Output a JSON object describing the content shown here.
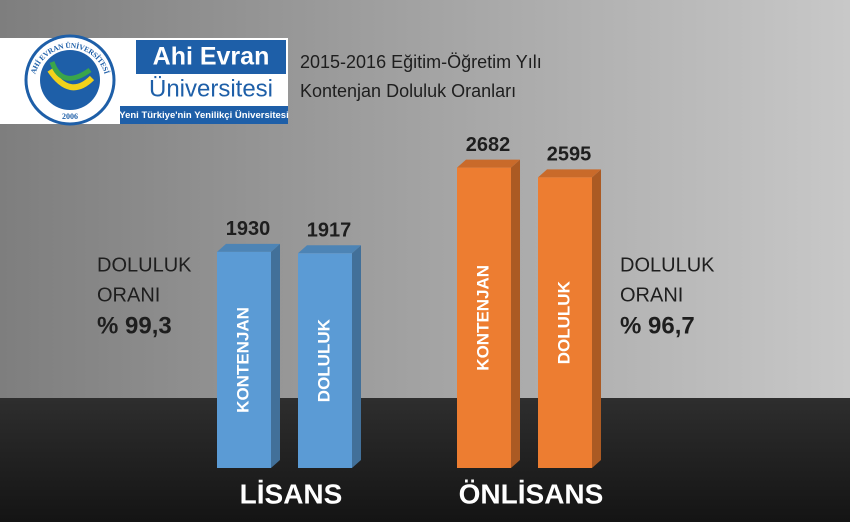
{
  "logo": {
    "name": "Ahi Evran",
    "name2": "Üniversitesi",
    "slogan": "Yeni Türkiye'nin Yenilikçi Üniversitesi",
    "ring": "AHİ EVRAN ÜNİVERSİTESİ",
    "year": "2006"
  },
  "chart_data": {
    "type": "bar",
    "title": "2015-2016 Eğitim-Öğretim Yılı",
    "subtitle": "Kontenjan Doluluk Oranları",
    "categories": [
      "LİSANS",
      "ÖNLİSANS"
    ],
    "colors": [
      "#5b9bd5",
      "#ed7d31"
    ],
    "series": [
      {
        "name": "KONTENJAN",
        "values": [
          1930,
          2682
        ]
      },
      {
        "name": "DOLULUK",
        "values": [
          1917,
          2595
        ]
      }
    ],
    "annotations": [
      {
        "line1": "DOLULUK",
        "line2": "ORANI",
        "rate": "% 99,3"
      },
      {
        "line1": "DOLULUK",
        "line2": "ORANI",
        "rate": "% 96,7"
      }
    ]
  }
}
